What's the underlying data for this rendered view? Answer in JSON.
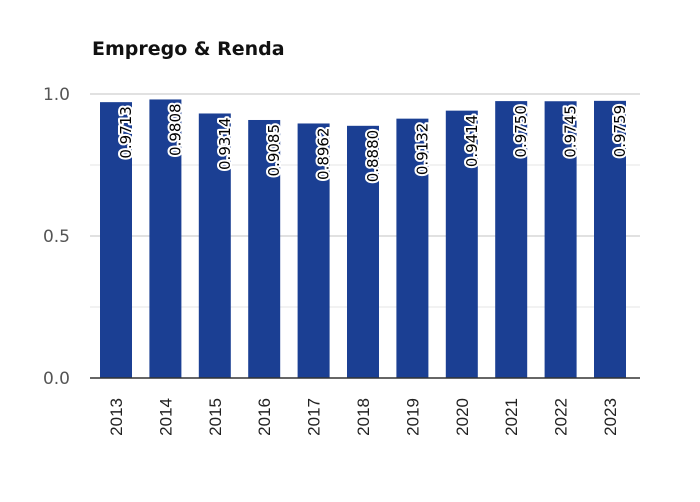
{
  "chart_data": {
    "type": "bar",
    "title": "Emprego & Renda",
    "xlabel": "",
    "ylabel": "",
    "categories": [
      "2013",
      "2014",
      "2015",
      "2016",
      "2017",
      "2018",
      "2019",
      "2020",
      "2021",
      "2022",
      "2023"
    ],
    "values": [
      0.9713,
      0.9808,
      0.9314,
      0.9085,
      0.8962,
      0.888,
      0.9132,
      0.9414,
      0.975,
      0.9745,
      0.9759
    ],
    "data_labels": [
      "0.9713",
      "0.9808",
      "0.9314",
      "0.9085",
      "0.8962",
      "0.8880",
      "0.9132",
      "0.9414",
      "0.9750",
      "0.9745",
      "0.9759"
    ],
    "ylim": [
      0,
      1.0
    ],
    "yticks": [
      {
        "value": 0,
        "label": "0.0"
      },
      {
        "value": 0.5,
        "label": "0.5"
      },
      {
        "value": 1.0,
        "label": "1.0"
      }
    ],
    "minor_grid": [
      0.25,
      0.75
    ],
    "grid": true,
    "legend": "none",
    "bar_color": "#1b3f93"
  }
}
